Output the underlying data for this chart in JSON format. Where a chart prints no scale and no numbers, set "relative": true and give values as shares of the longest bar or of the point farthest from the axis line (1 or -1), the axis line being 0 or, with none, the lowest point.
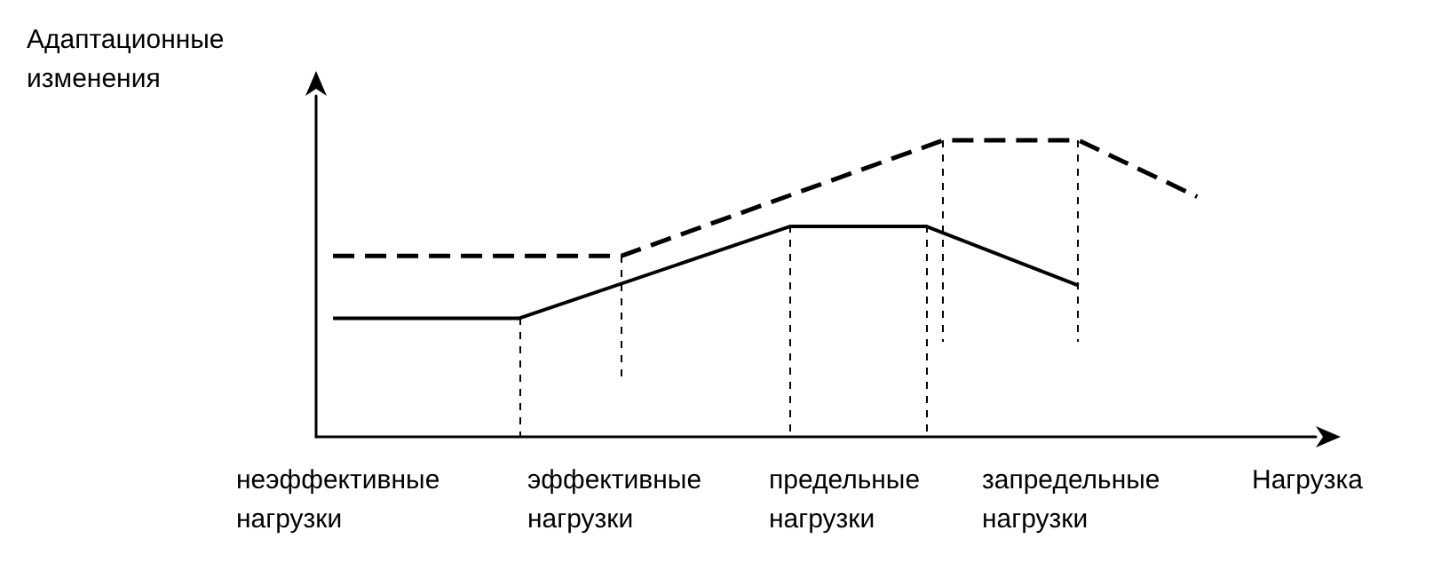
{
  "chart_data": {
    "type": "line",
    "relative": true,
    "ylabel": "Адаптационные изменения",
    "xlabel": "Нагрузка",
    "grid": false,
    "marker": "none",
    "annotations": [
      "неэффективные нагрузки",
      "эффективные нагрузки",
      "предельные нагрузки",
      "запредельные нагрузки"
    ],
    "categories": [
      null,
      null,
      null,
      null,
      null,
      null,
      null,
      null,
      null,
      null,
      null,
      null,
      null,
      null,
      null,
      null,
      null,
      null,
      null,
      null,
      null,
      null,
      null,
      null,
      null,
      null,
      null,
      null,
      null,
      null,
      null,
      null,
      null,
      null,
      null,
      null,
      null,
      null,
      null,
      null,
      null,
      null,
      null,
      null,
      null,
      null,
      null,
      null,
      null,
      null,
      null,
      null,
      null,
      null,
      null,
      null,
      null,
      null,
      null,
      null
    ],
    "series": [
      {
        "color": "#000000",
        "line_style": "solid",
        "values": [
          null,
          0.4,
          null,
          null,
          null,
          null,
          null,
          null,
          null,
          null,
          null,
          null,
          0.4,
          null,
          null,
          null,
          null,
          null,
          null,
          null,
          null,
          null,
          null,
          null,
          null,
          null,
          null,
          null,
          0.71,
          null,
          null,
          null,
          null,
          null,
          null,
          null,
          0.71,
          null,
          null,
          null,
          null,
          null,
          null,
          null,
          null,
          0.51,
          null,
          null,
          null,
          null,
          null,
          null,
          null,
          null,
          null,
          null,
          null,
          null,
          null,
          null
        ]
      },
      {
        "color": "#000000",
        "line_style": "dashed",
        "values": [
          null,
          0.61,
          null,
          null,
          null,
          null,
          null,
          null,
          null,
          null,
          null,
          null,
          null,
          null,
          null,
          null,
          null,
          null,
          0.61,
          null,
          null,
          null,
          null,
          null,
          null,
          null,
          null,
          null,
          null,
          null,
          null,
          null,
          null,
          null,
          null,
          null,
          null,
          1,
          null,
          null,
          null,
          null,
          null,
          null,
          null,
          1,
          null,
          null,
          null,
          null,
          null,
          null,
          0.81,
          null,
          null,
          null,
          null,
          null,
          null,
          null
        ]
      }
    ]
  }
}
